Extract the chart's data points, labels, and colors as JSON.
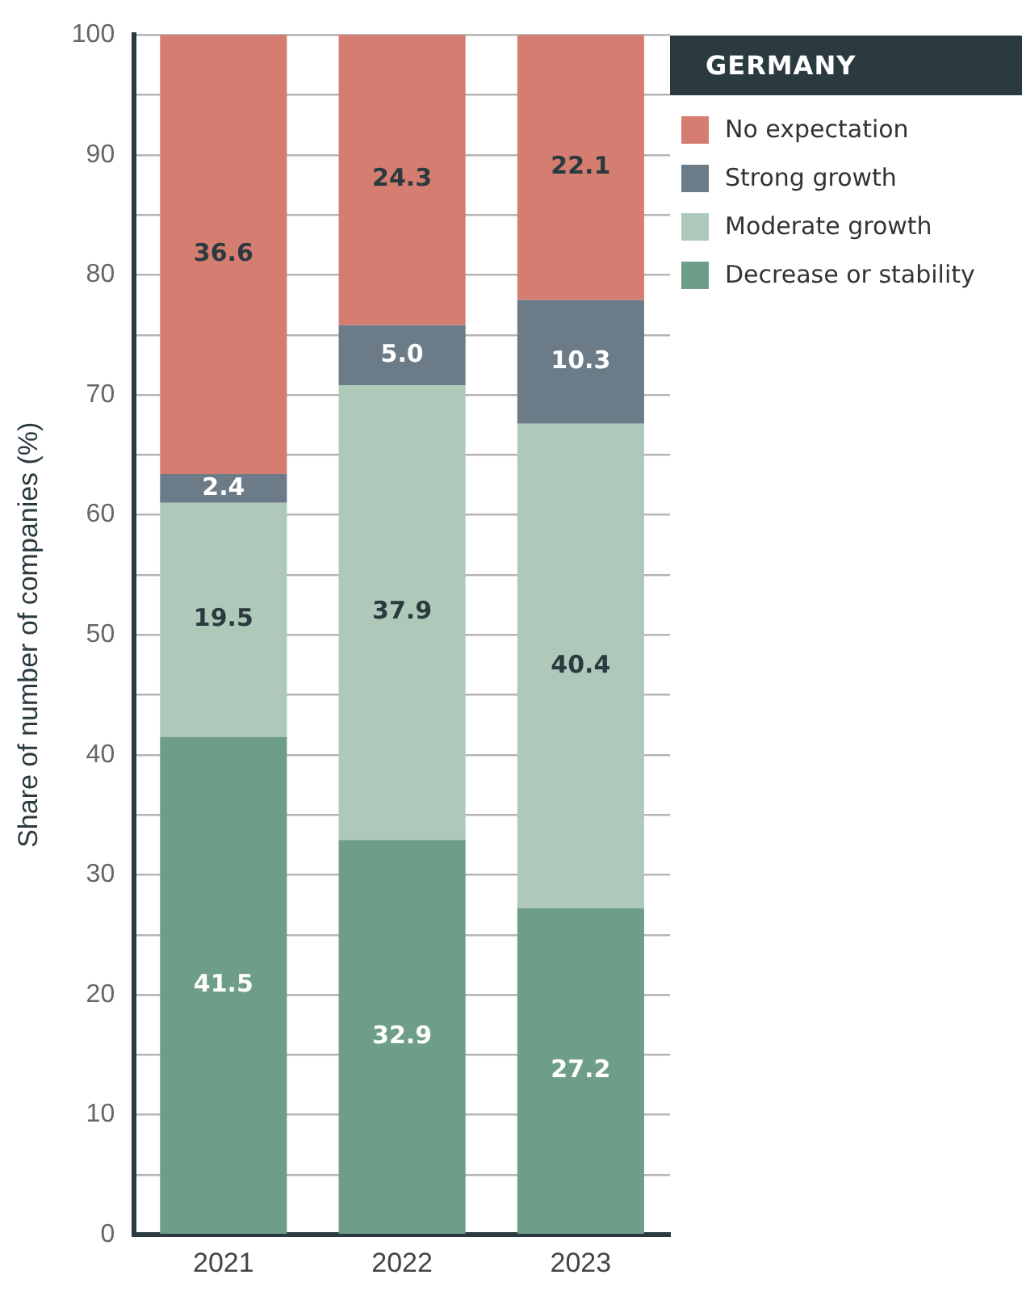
{
  "chart_data": {
    "type": "bar",
    "stacked": true,
    "ylabel": "Share of number of companies (%)",
    "legend_title": "GERMANY",
    "legend": "top right",
    "grid": "y",
    "categories": [
      "2021",
      "2022",
      "2023"
    ],
    "series": [
      {
        "name": "Decrease or stability",
        "color": "#6e9e88",
        "values": [
          41.5,
          32.9,
          27.2
        ],
        "value_labels": [
          "41.5",
          "32.9",
          "27.2"
        ]
      },
      {
        "name": "Moderate growth",
        "color": "#aec9b9",
        "values": [
          19.5,
          37.9,
          40.4
        ],
        "value_labels": [
          "19.5",
          "37.9",
          "40.4"
        ]
      },
      {
        "name": "Strong growth",
        "color": "#6b7b87",
        "values": [
          2.4,
          5.0,
          10.3
        ],
        "value_labels": [
          "2.4",
          "5.0",
          "10.3"
        ]
      },
      {
        "name": "No expectation",
        "color": "#d67d71",
        "values": [
          36.6,
          24.3,
          22.1
        ],
        "value_labels": [
          "36.6",
          "24.3",
          "22.1"
        ]
      }
    ],
    "ylim": [
      0,
      100
    ],
    "yticks": [
      0,
      {
        "value": 5,
        "label": null
      },
      10,
      {
        "value": 15,
        "label": null
      },
      20,
      {
        "value": 25,
        "label": null
      },
      30,
      {
        "value": 35,
        "label": null
      },
      40,
      {
        "value": 45,
        "label": null
      },
      50,
      {
        "value": 55,
        "label": null
      },
      60,
      {
        "value": 65,
        "label": null
      },
      70,
      {
        "value": 75,
        "label": null
      },
      80,
      {
        "value": 85,
        "label": null
      },
      90,
      {
        "value": 95,
        "label": null
      },
      100
    ]
  }
}
